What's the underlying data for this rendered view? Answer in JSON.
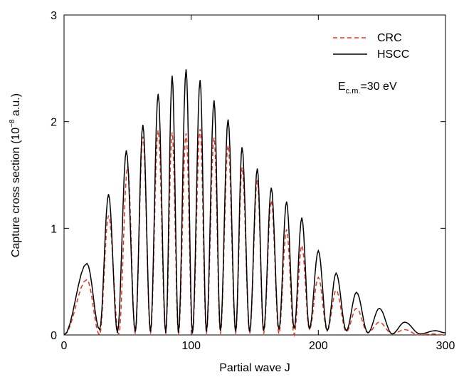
{
  "chart_data": {
    "type": "line",
    "title": "",
    "xlabel": "Partial wave J",
    "ylabel": "Capture  cross section  (10",
    "ylabel_exp": "−8",
    "ylabel_suffix": " a.u.)",
    "xlim": [
      0,
      300
    ],
    "ylim": [
      0,
      3
    ],
    "xticks": [
      0,
      100,
      200,
      300
    ],
    "xtick_labels": [
      "0",
      "100",
      "200",
      "300"
    ],
    "yticks": [
      0,
      1,
      2,
      3
    ],
    "ytick_labels": [
      "0",
      "1",
      "2",
      "3"
    ],
    "grid": false,
    "legend_position": "top-right",
    "annotation": {
      "prefix": "E",
      "subscript": "c.m.",
      "suffix": "=30 eV"
    },
    "series": [
      {
        "name": "CRC",
        "color": "#e8321e",
        "dash": "dashed",
        "peaks": [
          [
            18,
            0.52
          ],
          [
            35,
            1.12
          ],
          [
            50,
            1.58
          ],
          [
            62,
            1.86
          ],
          [
            74,
            1.92
          ],
          [
            85,
            1.9
          ],
          [
            96,
            1.89
          ],
          [
            107,
            1.93
          ],
          [
            118,
            1.85
          ],
          [
            129,
            1.78
          ],
          [
            140,
            1.57
          ],
          [
            152,
            1.45
          ],
          [
            163,
            1.26
          ],
          [
            175,
            0.99
          ],
          [
            187,
            0.84
          ],
          [
            200,
            0.54
          ],
          [
            214,
            0.42
          ],
          [
            230,
            0.25
          ],
          [
            248,
            0.12
          ],
          [
            268,
            0.05
          ],
          [
            290,
            0.01
          ]
        ],
        "minima": [
          [
            28,
            0.0
          ],
          [
            43,
            0.0
          ],
          [
            56,
            0.01
          ],
          [
            68,
            0.01
          ],
          [
            80,
            0.01
          ],
          [
            90,
            0.0
          ],
          [
            101,
            0.01
          ],
          [
            112,
            0.01
          ],
          [
            123,
            0.01
          ],
          [
            135,
            0.01
          ],
          [
            146,
            0.01
          ],
          [
            157,
            0.01
          ],
          [
            169,
            0.01
          ],
          [
            181,
            0.0
          ],
          [
            193,
            0.05
          ],
          [
            207,
            0.04
          ],
          [
            222,
            0.03
          ],
          [
            239,
            0.02
          ],
          [
            258,
            0.01
          ],
          [
            279,
            0.0
          ],
          [
            300,
            0.0
          ]
        ]
      },
      {
        "name": "HSCC",
        "color": "#000000",
        "dash": "solid",
        "peaks": [
          [
            18,
            0.67
          ],
          [
            35,
            1.32
          ],
          [
            49,
            1.73
          ],
          [
            62,
            1.97
          ],
          [
            74,
            2.26
          ],
          [
            85,
            2.43
          ],
          [
            96,
            2.49
          ],
          [
            107,
            2.39
          ],
          [
            118,
            2.2
          ],
          [
            129,
            2.02
          ],
          [
            140,
            1.76
          ],
          [
            152,
            1.56
          ],
          [
            163,
            1.38
          ],
          [
            175,
            1.25
          ],
          [
            187,
            1.1
          ],
          [
            200,
            0.79
          ],
          [
            214,
            0.58
          ],
          [
            230,
            0.4
          ],
          [
            248,
            0.25
          ],
          [
            268,
            0.12
          ],
          [
            292,
            0.04
          ]
        ],
        "minima": [
          [
            28,
            0.05
          ],
          [
            42,
            0.02
          ],
          [
            56,
            0.03
          ],
          [
            68,
            0.03
          ],
          [
            80,
            0.02
          ],
          [
            90,
            0.02
          ],
          [
            101,
            0.02
          ],
          [
            112,
            0.03
          ],
          [
            123,
            0.04
          ],
          [
            135,
            0.03
          ],
          [
            146,
            0.03
          ],
          [
            157,
            0.04
          ],
          [
            169,
            0.05
          ],
          [
            181,
            0.06
          ],
          [
            193,
            0.06
          ],
          [
            207,
            0.04
          ],
          [
            222,
            0.04
          ],
          [
            239,
            0.02
          ],
          [
            258,
            0.01
          ],
          [
            280,
            0.01
          ],
          [
            300,
            0.02
          ]
        ]
      }
    ]
  }
}
